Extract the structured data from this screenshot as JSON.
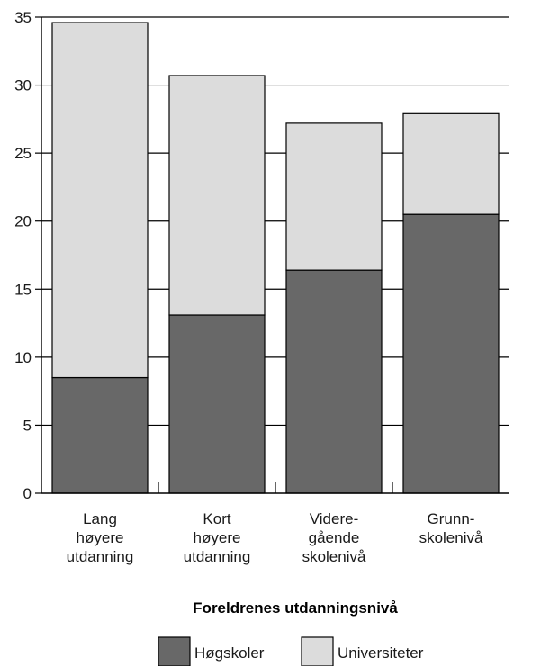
{
  "chart_data": {
    "type": "bar",
    "stacked": true,
    "categories": [
      [
        "Lang",
        "høyere",
        "utdanning"
      ],
      [
        "Kort",
        "høyere",
        "utdanning"
      ],
      [
        "Videre-",
        "gående",
        "skolenivå"
      ],
      [
        "Grunn-",
        "skolenivå"
      ]
    ],
    "series": [
      {
        "name": "Høgskoler",
        "color": "#686868",
        "values": [
          8.5,
          13.1,
          16.4,
          20.5
        ]
      },
      {
        "name": "Universiteter",
        "color": "#dcdcdc",
        "values": [
          26.1,
          17.6,
          10.8,
          7.4
        ]
      }
    ],
    "title": "",
    "xlabel": "Foreldrenes utdanningsnivå",
    "ylabel": "",
    "ylim": [
      0,
      35
    ],
    "yticks": [
      0,
      5,
      10,
      15,
      20,
      25,
      30,
      35
    ],
    "grid": true,
    "legend": "bottom-center"
  }
}
